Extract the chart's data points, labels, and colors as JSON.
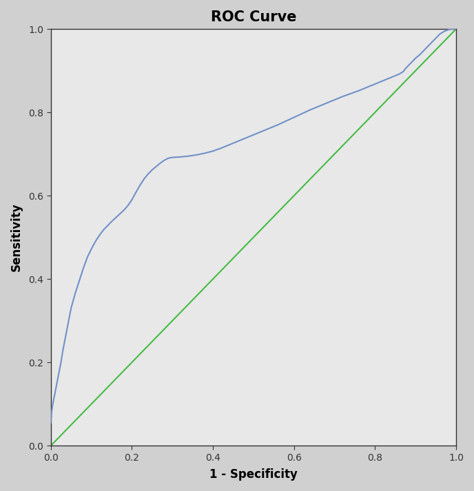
{
  "title": "ROC Curve",
  "xlabel": "1 - Specificity",
  "ylabel": "Sensitivity",
  "xlim": [
    0.0,
    1.0
  ],
  "ylim": [
    0.0,
    1.0
  ],
  "xticks": [
    0.0,
    0.2,
    0.4,
    0.6,
    0.8,
    1.0
  ],
  "yticks": [
    0.0,
    0.2,
    0.4,
    0.6,
    0.8,
    1.0
  ],
  "plot_background": "#e8e8e8",
  "fig_background": "#d0d0d0",
  "roc_color": "#7090c8",
  "diagonal_color": "#44bb44",
  "roc_linewidth": 1.5,
  "diagonal_linewidth": 1.5,
  "title_fontsize": 15,
  "label_fontsize": 12,
  "tick_fontsize": 10,
  "roc_x": [
    0.0,
    0.002,
    0.004,
    0.006,
    0.008,
    0.01,
    0.012,
    0.015,
    0.018,
    0.02,
    0.025,
    0.03,
    0.04,
    0.05,
    0.06,
    0.07,
    0.08,
    0.09,
    0.1,
    0.11,
    0.12,
    0.13,
    0.14,
    0.15,
    0.16,
    0.17,
    0.18,
    0.19,
    0.2,
    0.21,
    0.22,
    0.23,
    0.24,
    0.25,
    0.26,
    0.27,
    0.28,
    0.29,
    0.3,
    0.32,
    0.34,
    0.36,
    0.38,
    0.4,
    0.42,
    0.44,
    0.46,
    0.48,
    0.5,
    0.52,
    0.54,
    0.56,
    0.58,
    0.6,
    0.62,
    0.64,
    0.66,
    0.68,
    0.7,
    0.72,
    0.74,
    0.76,
    0.78,
    0.8,
    0.82,
    0.84,
    0.85,
    0.86,
    0.87,
    0.875,
    0.88,
    0.885,
    0.89,
    0.895,
    0.9,
    0.91,
    0.92,
    0.93,
    0.94,
    0.95,
    0.96,
    0.97,
    0.98,
    0.99,
    1.0
  ],
  "roc_y": [
    0.055,
    0.08,
    0.095,
    0.105,
    0.115,
    0.125,
    0.135,
    0.15,
    0.165,
    0.175,
    0.2,
    0.23,
    0.28,
    0.33,
    0.365,
    0.395,
    0.425,
    0.452,
    0.472,
    0.49,
    0.505,
    0.518,
    0.528,
    0.538,
    0.547,
    0.556,
    0.565,
    0.576,
    0.59,
    0.608,
    0.625,
    0.64,
    0.652,
    0.662,
    0.67,
    0.678,
    0.685,
    0.69,
    0.692,
    0.693,
    0.695,
    0.698,
    0.702,
    0.707,
    0.714,
    0.722,
    0.73,
    0.738,
    0.746,
    0.754,
    0.762,
    0.77,
    0.779,
    0.788,
    0.797,
    0.806,
    0.814,
    0.822,
    0.83,
    0.838,
    0.845,
    0.852,
    0.86,
    0.868,
    0.876,
    0.884,
    0.888,
    0.892,
    0.898,
    0.905,
    0.91,
    0.915,
    0.92,
    0.925,
    0.93,
    0.938,
    0.948,
    0.958,
    0.968,
    0.978,
    0.988,
    0.994,
    0.998,
    1.0,
    1.0
  ]
}
